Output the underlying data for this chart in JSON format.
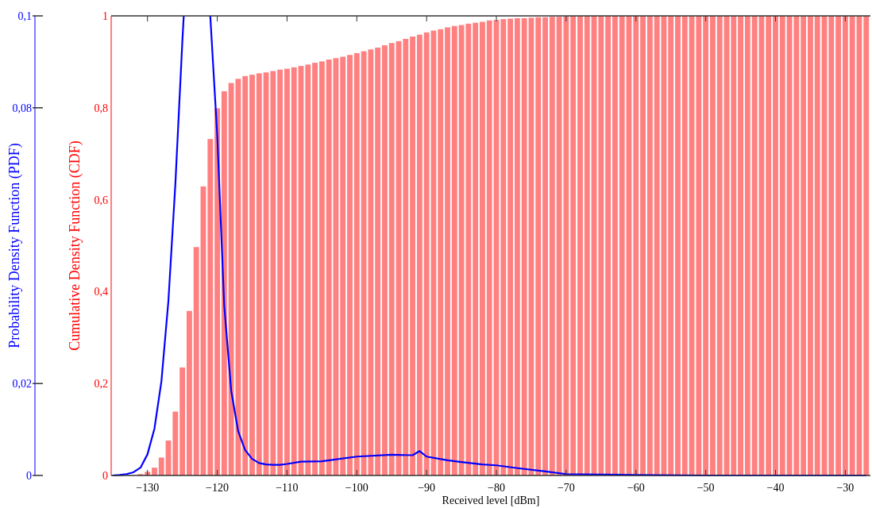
{
  "chart_data": {
    "type": "bar",
    "xlabel": "Received level [dBm]",
    "ylabel": "Probability Density Function (PDF)",
    "y2label": "Cumulative Density Function (CDF)",
    "xlim": [
      -135.2,
      -26.4
    ],
    "xticks": [
      {
        "value": -130,
        "label": "−130"
      },
      {
        "value": -120,
        "label": "−120"
      },
      {
        "value": -110,
        "label": "−110"
      },
      {
        "value": -100,
        "label": "−100"
      },
      {
        "value": -90,
        "label": "−90"
      },
      {
        "value": -80,
        "label": "−80"
      },
      {
        "value": -70,
        "label": "−70"
      },
      {
        "value": -60,
        "label": "−60"
      },
      {
        "value": -50,
        "label": "−50"
      },
      {
        "value": -40,
        "label": "−40"
      },
      {
        "value": -30,
        "label": "−30"
      }
    ],
    "ylim": [
      0,
      0.1
    ],
    "yticks": [
      0,
      {
        "value": 0.02,
        "label": "0,02"
      },
      {
        "value": 0.08,
        "label": "0,08"
      },
      {
        "value": 0.1,
        "label": "0,1"
      }
    ],
    "y2lim": [
      0,
      1
    ],
    "y2ticks": [
      0,
      {
        "value": 0.2,
        "label": "0,2"
      },
      {
        "value": 0.4,
        "label": "0,4"
      },
      {
        "value": 0.6,
        "label": "0,6"
      },
      {
        "value": 0.8,
        "label": "0,8"
      },
      1
    ],
    "grid": false,
    "series": [
      {
        "axis": "y2",
        "color": "#ff8080",
        "x": [
          -131,
          -130,
          -129,
          -128,
          -127,
          -126,
          -125,
          -124,
          -123,
          -122,
          -121,
          -120,
          -119,
          -118,
          -117,
          -116,
          -115,
          -114,
          -113,
          -112,
          -111,
          -110,
          -109,
          -108,
          -107,
          -106,
          -105,
          -104,
          -103,
          -102,
          -101,
          -100,
          -99,
          -98,
          -97,
          -96,
          -95,
          -94,
          -93,
          -92,
          -91,
          -90,
          -89,
          -88,
          -87,
          -86,
          -85,
          -84,
          -83,
          -82,
          -81,
          -80,
          -79,
          -78,
          -77,
          -76,
          -75,
          -74,
          -73,
          -72,
          -71,
          -70,
          -69,
          -68,
          -67,
          -66,
          -65,
          -64,
          -63,
          -62,
          -61,
          -60,
          -59,
          -58,
          -57,
          -56,
          -55,
          -54,
          -53,
          -52,
          -51,
          -50,
          -49,
          -48,
          -47,
          -46,
          -45,
          -44,
          -43,
          -42,
          -41,
          -40,
          -39,
          -38,
          -37,
          -36,
          -35,
          -34,
          -33,
          -32,
          -31,
          -30,
          -29,
          -28,
          -27
        ],
        "values": [
          0.003,
          0.008,
          0.017,
          0.039,
          0.076,
          0.139,
          0.235,
          0.358,
          0.497,
          0.629,
          0.732,
          0.799,
          0.836,
          0.854,
          0.863,
          0.869,
          0.872,
          0.875,
          0.877,
          0.88,
          0.883,
          0.885,
          0.888,
          0.891,
          0.894,
          0.898,
          0.901,
          0.905,
          0.908,
          0.911,
          0.915,
          0.919,
          0.923,
          0.927,
          0.931,
          0.936,
          0.941,
          0.945,
          0.95,
          0.955,
          0.959,
          0.964,
          0.968,
          0.971,
          0.975,
          0.978,
          0.98,
          0.983,
          0.985,
          0.987,
          0.99,
          0.991,
          0.993,
          0.994,
          0.995,
          0.995,
          0.996,
          0.997,
          0.997,
          0.998,
          0.998,
          0.999,
          1,
          1,
          1,
          1,
          1,
          1,
          1,
          1,
          1,
          1,
          1,
          1,
          1,
          1,
          1,
          1,
          1,
          1,
          1,
          1,
          1,
          1,
          1,
          1,
          1,
          1,
          1,
          1,
          1,
          1,
          1,
          1,
          1,
          1,
          1,
          1,
          1,
          1,
          1,
          1,
          1,
          1,
          1
        ]
      },
      {
        "type": "line",
        "axis": "y",
        "color": "#0000ff",
        "x": [
          -135,
          -134,
          -133,
          -132,
          -131,
          -130,
          -129,
          -128,
          -127,
          -126,
          -125,
          -124.8,
          -123,
          -121,
          -120,
          -119,
          -118,
          -117,
          -116,
          -115,
          -114,
          -113,
          -112,
          -111,
          -110,
          -108,
          -105,
          -100,
          -95,
          -92,
          -91,
          -90,
          -87,
          -85,
          -82,
          -80,
          -77,
          -73,
          -70,
          -65,
          -60,
          -50,
          -27
        ],
        "values": [
          0,
          0.0001,
          0.0003,
          0.0007,
          0.0017,
          0.0046,
          0.0102,
          0.0205,
          0.038,
          0.0635,
          0.0945,
          0.1,
          null,
          0.1,
          0.074,
          0.0369,
          0.0184,
          0.0096,
          0.0055,
          0.0036,
          0.0027,
          0.0024,
          0.0023,
          0.0023,
          0.0025,
          0.003,
          0.0031,
          0.0041,
          0.0045,
          0.0044,
          0.0053,
          0.0041,
          0.0033,
          0.0029,
          0.0024,
          0.0022,
          0.0016,
          0.0009,
          0.0003,
          0.0002,
          0.0001,
          0,
          0
        ]
      }
    ]
  }
}
